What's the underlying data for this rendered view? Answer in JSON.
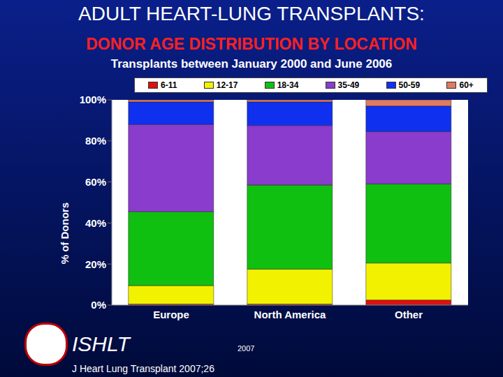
{
  "chart_data": {
    "type": "bar",
    "stacked": true,
    "title": "ADULT HEART-LUNG TRANSPLANTS:",
    "subtitle": [
      "DONOR AGE DISTRIBUTION BY LOCATION",
      "Transplants between January 2000 and June 2006"
    ],
    "y_label": "% of Donors",
    "categories": [
      "Europe",
      "North America",
      "Other"
    ],
    "series": [
      {
        "name": "6-11",
        "color": "#e01010",
        "values": [
          0.5,
          0.5,
          2.5
        ]
      },
      {
        "name": "12-17",
        "color": "#f2f200",
        "values": [
          9,
          17,
          18
        ]
      },
      {
        "name": "18-34",
        "color": "#10c010",
        "values": [
          36,
          41,
          38.5
        ]
      },
      {
        "name": "35-49",
        "color": "#8a3ccc",
        "values": [
          42.5,
          29,
          25.5
        ]
      },
      {
        "name": "50-59",
        "color": "#1030f0",
        "values": [
          11,
          11.5,
          12.5
        ]
      },
      {
        "name": "60+",
        "color": "#e07a62",
        "values": [
          1,
          1,
          3
        ]
      }
    ],
    "ylim": [
      0,
      100
    ],
    "yticks": [
      {
        "value": 0,
        "label": "0%"
      },
      {
        "value": 20,
        "label": "20%"
      },
      {
        "value": 40,
        "label": "40%"
      },
      {
        "value": 60,
        "label": "60%"
      },
      {
        "value": 80,
        "label": "80%"
      },
      {
        "value": 100,
        "label": "100%"
      }
    ],
    "grid": false,
    "legend": "top",
    "annotations": [
      "ISHLT",
      "2007",
      "J Heart Lung Transplant 2007;26"
    ]
  }
}
